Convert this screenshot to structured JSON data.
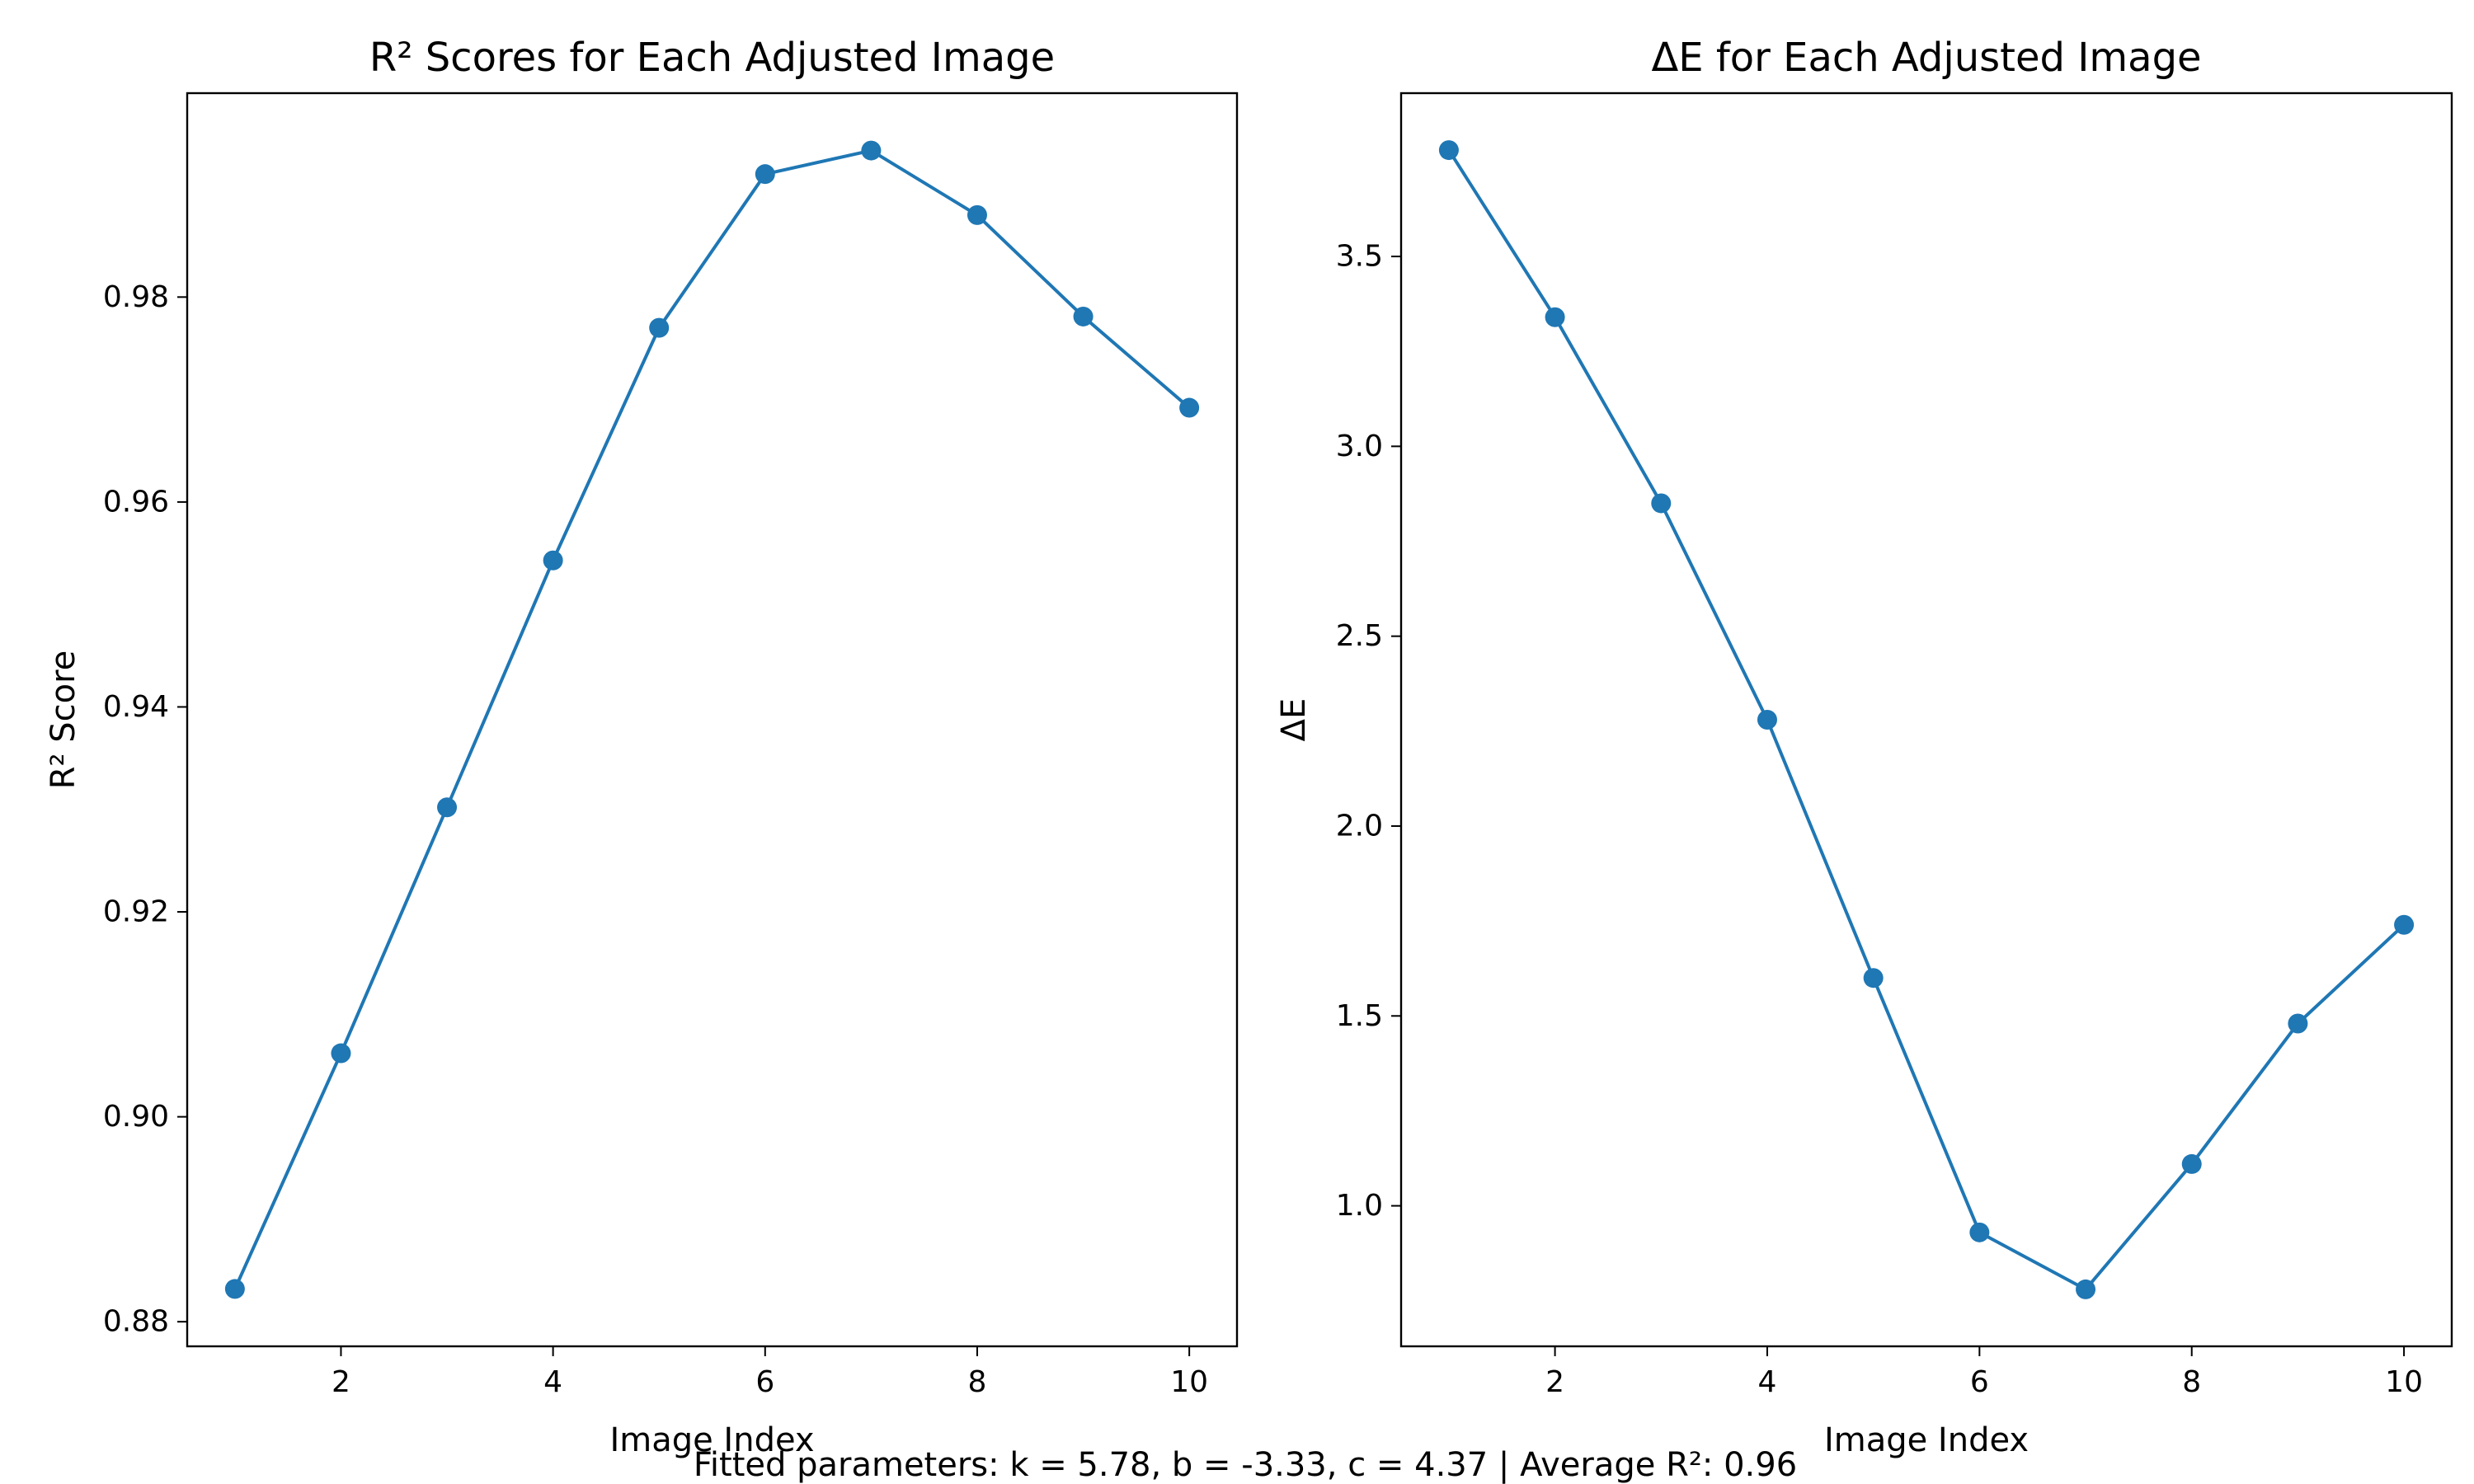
{
  "colors": {
    "series": "#1f77b4",
    "axis": "#000000",
    "background": "#ffffff"
  },
  "footer_text": "Fitted parameters: k = 5.78, b = -3.33, c = 4.37 | Average R²: 0.96",
  "chart_data": [
    {
      "type": "line",
      "title": "R² Scores for Each Adjusted Image",
      "xlabel": "Image Index",
      "ylabel": "R² Score",
      "xlim": [
        0.55,
        10.45
      ],
      "ylim": [
        0.8776,
        0.9999
      ],
      "xticks": [
        2,
        4,
        6,
        8,
        10
      ],
      "xtick_labels": [
        "2",
        "4",
        "6",
        "8",
        "10"
      ],
      "yticks": [
        0.88,
        0.9,
        0.92,
        0.94,
        0.96,
        0.98
      ],
      "ytick_labels": [
        "0.88",
        "0.90",
        "0.92",
        "0.94",
        "0.96",
        "0.98"
      ],
      "grid": false,
      "marker": "circle",
      "x": [
        1,
        2,
        3,
        4,
        5,
        6,
        7,
        8,
        9,
        10
      ],
      "series": [
        {
          "values": [
            0.8832,
            0.9062,
            0.9302,
            0.9543,
            0.977,
            0.992,
            0.9943,
            0.988,
            0.9781,
            0.9692
          ]
        }
      ]
    },
    {
      "type": "line",
      "title": "ΔE for Each Adjusted Image",
      "xlabel": "Image Index",
      "ylabel": "ΔE",
      "xlim": [
        0.55,
        10.45
      ],
      "ylim": [
        0.63,
        3.93
      ],
      "xticks": [
        2,
        4,
        6,
        8,
        10
      ],
      "xtick_labels": [
        "2",
        "4",
        "6",
        "8",
        "10"
      ],
      "yticks": [
        1.0,
        1.5,
        2.0,
        2.5,
        3.0,
        3.5
      ],
      "ytick_labels": [
        "1.0",
        "1.5",
        "2.0",
        "2.5",
        "3.0",
        "3.5"
      ],
      "grid": false,
      "marker": "circle",
      "x": [
        1,
        2,
        3,
        4,
        5,
        6,
        7,
        8,
        9,
        10
      ],
      "series": [
        {
          "values": [
            3.78,
            3.34,
            2.85,
            2.28,
            1.6,
            0.93,
            0.78,
            1.11,
            1.48,
            1.74
          ]
        }
      ]
    }
  ]
}
